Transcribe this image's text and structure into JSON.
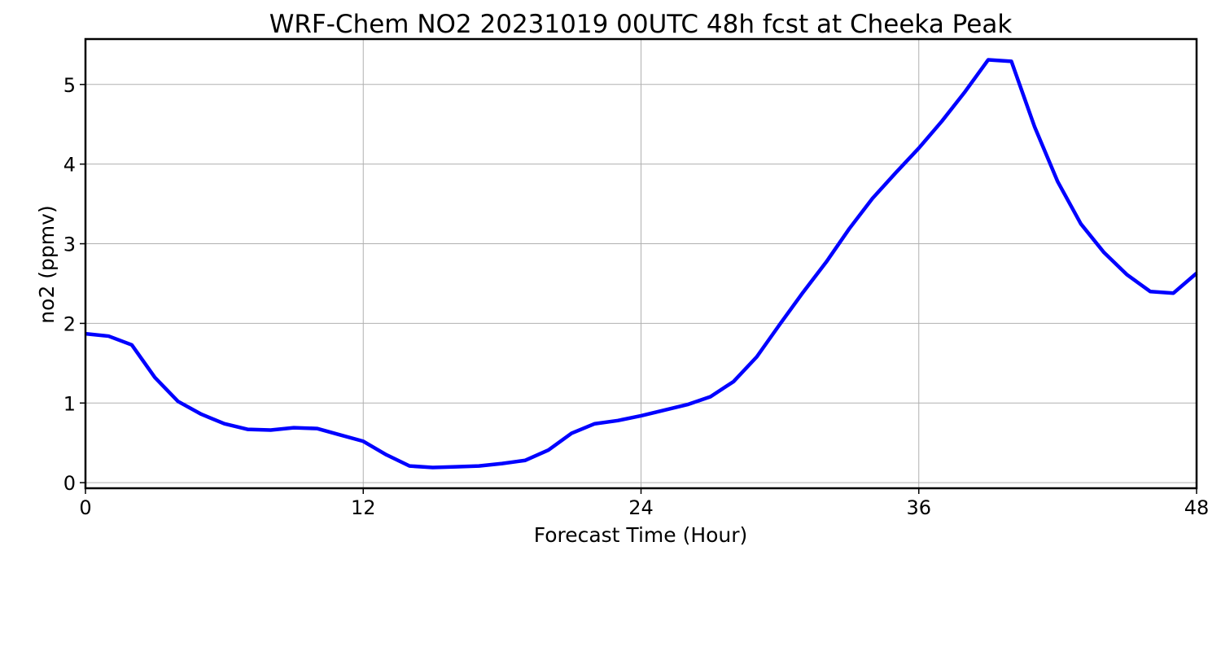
{
  "chart_data": {
    "type": "line",
    "title": "WRF-Chem NO2  20231019 00UTC 48h fcst at Cheeka Peak",
    "xlabel": "Forecast Time (Hour)",
    "ylabel": "no2  (ppmv)",
    "xlim": [
      0,
      48
    ],
    "ylim": [
      -0.07,
      5.57
    ],
    "xticks": [
      0,
      12,
      24,
      36,
      48
    ],
    "yticks": [
      0,
      1,
      2,
      3,
      4,
      5
    ],
    "grid": true,
    "colors": {
      "series": "#0000ff",
      "grid": "#b0b0b0",
      "frame": "#000000"
    },
    "series": [
      {
        "x": [
          0,
          1,
          2,
          3,
          4,
          5,
          6,
          7,
          8,
          9,
          10,
          11,
          12,
          13,
          14,
          15,
          16,
          17,
          18,
          19,
          20,
          21,
          22,
          23,
          24,
          25,
          26,
          27,
          28,
          29,
          30,
          31,
          32,
          33,
          34,
          35,
          36,
          37,
          38,
          39,
          40,
          41,
          42,
          43,
          44,
          45,
          46,
          47,
          48
        ],
        "values": [
          1.87,
          1.84,
          1.73,
          1.32,
          1.02,
          0.86,
          0.74,
          0.67,
          0.66,
          0.69,
          0.68,
          0.6,
          0.52,
          0.35,
          0.21,
          0.19,
          0.2,
          0.21,
          0.24,
          0.28,
          0.41,
          0.62,
          0.74,
          0.78,
          0.84,
          0.91,
          0.98,
          1.08,
          1.27,
          1.58,
          1.99,
          2.39,
          2.77,
          3.19,
          3.57,
          3.89,
          4.2,
          4.54,
          4.91,
          5.31,
          5.29,
          4.47,
          3.78,
          3.25,
          2.89,
          2.61,
          2.4,
          2.38,
          2.63
        ]
      }
    ]
  }
}
